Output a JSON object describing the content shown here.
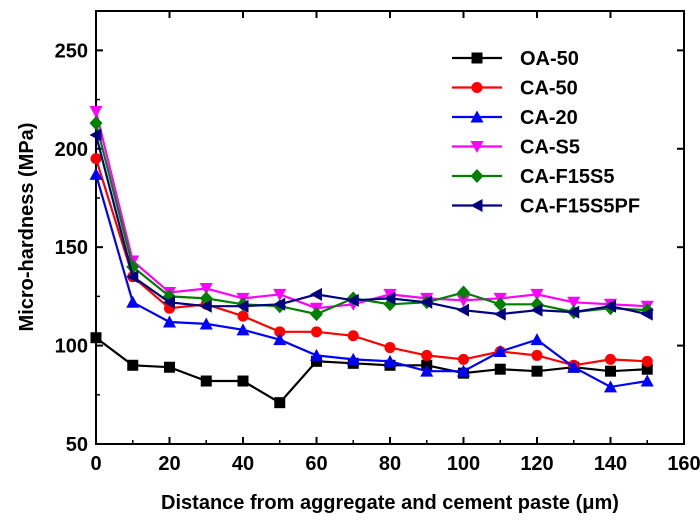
{
  "chart_data": {
    "type": "line",
    "title": "",
    "xlabel": "Distance from aggregate and cement paste (μm)",
    "ylabel": "Micro-hardness (MPa)",
    "xlim": [
      0,
      160
    ],
    "ylim": [
      50,
      270
    ],
    "xticks": [
      0,
      20,
      40,
      60,
      80,
      100,
      120,
      140,
      160
    ],
    "yticks": [
      50,
      100,
      150,
      200,
      250
    ],
    "grid": false,
    "legend_position": "top-right",
    "x": [
      0,
      10,
      20,
      30,
      40,
      50,
      60,
      70,
      80,
      90,
      100,
      110,
      120,
      130,
      140,
      150
    ],
    "series": [
      {
        "name": "OA-50",
        "color": "#000000",
        "marker": "square",
        "values": [
          104,
          90,
          89,
          82,
          82,
          71,
          92,
          91,
          90,
          90,
          86,
          88,
          87,
          89,
          87,
          88
        ]
      },
      {
        "name": "CA-50",
        "color": "#ff0000",
        "marker": "circle",
        "values": [
          195,
          135,
          119,
          121,
          115,
          107,
          107,
          105,
          99,
          95,
          93,
          97,
          95,
          90,
          93,
          92
        ]
      },
      {
        "name": "CA-20",
        "color": "#0000ff",
        "marker": "triangle-up",
        "values": [
          187,
          122,
          112,
          111,
          108,
          103,
          95,
          93,
          92,
          87,
          87,
          97,
          103,
          89,
          79,
          82
        ]
      },
      {
        "name": "CA-S5",
        "color": "#ff00ff",
        "marker": "triangle-down",
        "values": [
          219,
          143,
          127,
          129,
          124,
          126,
          119,
          121,
          126,
          124,
          123,
          124,
          126,
          122,
          121,
          120
        ]
      },
      {
        "name": "CA-F15S5",
        "color": "#008000",
        "marker": "diamond",
        "values": [
          213,
          140,
          125,
          124,
          121,
          120,
          116,
          124,
          121,
          122,
          127,
          121,
          121,
          117,
          119,
          118
        ]
      },
      {
        "name": "CA-F15S5PF",
        "color": "#000080",
        "marker": "triangle-left",
        "values": [
          207,
          135,
          122,
          120,
          120,
          121,
          126,
          123,
          124,
          122,
          118,
          116,
          118,
          117,
          120,
          116
        ]
      }
    ]
  }
}
